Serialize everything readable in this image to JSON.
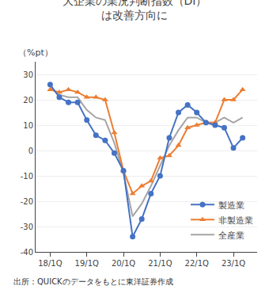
{
  "chart_data": {
    "type": "line",
    "title": "大企業の業況判断指数（DI）\nは改善方向に",
    "ylabel": "（%pt）",
    "annotations": [
      "出所：QUICKのデータをもとに東洋証券作成"
    ],
    "categories": [
      "18/1Q",
      null,
      null,
      null,
      "19/1Q",
      null,
      null,
      null,
      "20/1Q",
      null,
      null,
      null,
      "21/1Q",
      null,
      null,
      null,
      "22/1Q",
      null,
      null,
      null,
      "23/1Q",
      null
    ],
    "series": [
      {
        "name": "全産業",
        "color": "#A5A5A5",
        "values": [
          25,
          22,
          21,
          21,
          16,
          13,
          12,
          3,
          -9,
          -26,
          -21,
          -14,
          -6,
          2,
          8,
          13,
          13,
          11,
          11,
          13,
          11,
          13
        ]
      },
      {
        "name": "非製造業",
        "color": "#ED7D31",
        "marker": "triangle-up",
        "values": [
          24,
          23,
          24,
          23,
          21,
          21,
          20,
          7,
          -8,
          -17,
          -14,
          -12,
          -3,
          -2,
          2,
          9,
          10,
          11,
          11,
          20,
          20,
          24
        ]
      },
      {
        "name": "製造業",
        "color": "#4472C4",
        "marker": "circle",
        "values": [
          26,
          21,
          19,
          19,
          12,
          6,
          4,
          -1,
          -8,
          -34,
          -27,
          -17,
          -10,
          5,
          15,
          18,
          15,
          11,
          10,
          9,
          1,
          5
        ]
      }
    ],
    "ylim": [
      -40,
      35
    ],
    "yticks": [
      -40,
      -30,
      -20,
      -10,
      0,
      10,
      20,
      30
    ],
    "grid": "y",
    "legend": "lower right"
  }
}
